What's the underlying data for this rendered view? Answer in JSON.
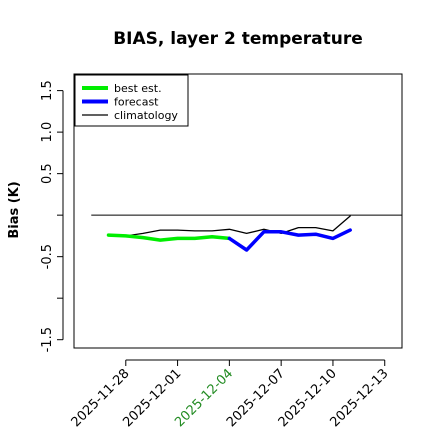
{
  "chart_data": {
    "type": "line",
    "title": "BIAS, layer 2 temperature",
    "xlabel": "",
    "ylabel": "Bias (K)",
    "ylim": [
      -1.6,
      1.7
    ],
    "xlim": [
      "2025-11-25",
      "2025-12-14"
    ],
    "grid": false,
    "legend_position": "top-left",
    "x_ticks": [
      "2025-11-28",
      "2025-12-01",
      "2025-12-04",
      "2025-12-07",
      "2025-12-10",
      "2025-12-13"
    ],
    "x_tick_colors": [
      "#000000",
      "#000000",
      "#228B22",
      "#000000",
      "#000000",
      "#000000"
    ],
    "y_ticks": [
      "-1.5",
      "-0.5",
      "0.5",
      "1.0",
      "1.5"
    ],
    "y_tick_values": [
      -1.5,
      -0.5,
      0.5,
      1.0,
      1.5
    ],
    "y_minor_ticks": [
      -1.0,
      0.0
    ],
    "reference_line": {
      "y": 0.0,
      "x_from": "2025-11-26",
      "x_to": "2025-12-14",
      "color": "#000000"
    },
    "series": [
      {
        "name": "best est.",
        "color": "#00ee00",
        "width": 3.5,
        "points": [
          [
            "2025-11-27",
            -0.24
          ],
          [
            "2025-11-28",
            -0.25
          ],
          [
            "2025-11-29",
            -0.27
          ],
          [
            "2025-11-30",
            -0.3
          ],
          [
            "2025-12-01",
            -0.28
          ],
          [
            "2025-12-02",
            -0.28
          ],
          [
            "2025-12-03",
            -0.26
          ],
          [
            "2025-12-04",
            -0.28
          ]
        ]
      },
      {
        "name": "forecast",
        "color": "#0000ff",
        "width": 3.5,
        "points": [
          [
            "2025-12-04",
            -0.28
          ],
          [
            "2025-12-05",
            -0.42
          ],
          [
            "2025-12-06",
            -0.2
          ],
          [
            "2025-12-07",
            -0.2
          ],
          [
            "2025-12-08",
            -0.24
          ],
          [
            "2025-12-09",
            -0.23
          ],
          [
            "2025-12-10",
            -0.28
          ],
          [
            "2025-12-11",
            -0.18
          ]
        ]
      },
      {
        "name": "climatology",
        "color": "#000000",
        "width": 1.3,
        "points": [
          [
            "2025-11-27",
            -0.25
          ],
          [
            "2025-11-28",
            -0.25
          ],
          [
            "2025-11-29",
            -0.22
          ],
          [
            "2025-11-30",
            -0.18
          ],
          [
            "2025-12-01",
            -0.18
          ],
          [
            "2025-12-02",
            -0.19
          ],
          [
            "2025-12-03",
            -0.19
          ],
          [
            "2025-12-04",
            -0.17
          ],
          [
            "2025-12-05",
            -0.22
          ],
          [
            "2025-12-06",
            -0.17
          ],
          [
            "2025-12-07",
            -0.22
          ],
          [
            "2025-12-08",
            -0.15
          ],
          [
            "2025-12-09",
            -0.15
          ],
          [
            "2025-12-10",
            -0.19
          ],
          [
            "2025-12-11",
            -0.01
          ]
        ]
      }
    ]
  }
}
